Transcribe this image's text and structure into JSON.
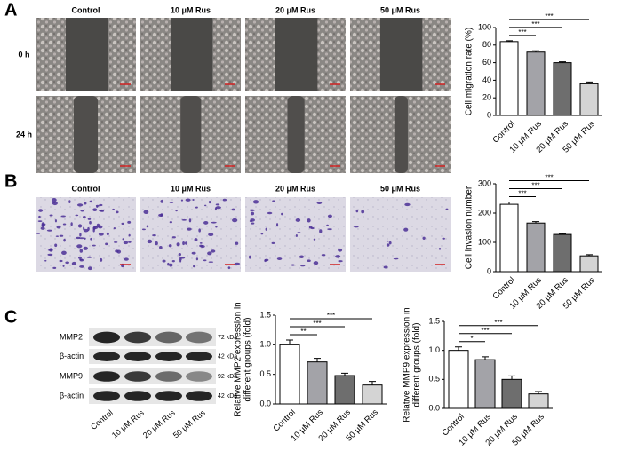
{
  "figure": {
    "A": {
      "label": "A",
      "columns": [
        "Control",
        "10 μM Rus",
        "20 μM Rus",
        "50 μM Rus"
      ],
      "rows": [
        "0 h",
        "24 h"
      ]
    },
    "B": {
      "label": "B",
      "columns": [
        "Control",
        "10 μM Rus",
        "20 μM Rus",
        "50 μM Rus"
      ]
    },
    "C": {
      "label": "C",
      "blots": [
        {
          "name": "MMP2",
          "size": "72 kDa"
        },
        {
          "name": "β-actin",
          "size": "42 kDa"
        },
        {
          "name": "MMP9",
          "size": "92 kDa"
        },
        {
          "name": "β-actin",
          "size": "42 kDa"
        }
      ],
      "columns": [
        "Control",
        "10 μM Rus",
        "20 μM Rus",
        "50 μM Rus"
      ]
    }
  },
  "chart_data": [
    {
      "type": "bar",
      "ylabel": [
        "Cell migration rate (%)"
      ],
      "categories": [
        "Control",
        "10 μM Rus",
        "20 μM Rus",
        "50 μM Rus"
      ],
      "values": [
        84,
        72,
        60,
        36
      ],
      "errors": [
        1,
        1.5,
        1,
        2
      ],
      "colors": [
        "#ffffff",
        "#a3a3a8",
        "#6e6e6e",
        "#d4d4d4"
      ],
      "ylim": [
        0,
        100
      ],
      "yticks": [
        0,
        20,
        40,
        60,
        80,
        100
      ],
      "annotations": [
        "***",
        "***",
        "***"
      ]
    },
    {
      "type": "bar",
      "ylabel": [
        "Cell invasion number"
      ],
      "categories": [
        "Control",
        "10 μM Rus",
        "20 μM Rus",
        "50 μM Rus"
      ],
      "values": [
        230,
        166,
        127,
        54
      ],
      "errors": [
        8,
        5,
        3,
        4
      ],
      "colors": [
        "#ffffff",
        "#a3a3a8",
        "#6e6e6e",
        "#d4d4d4"
      ],
      "ylim": [
        0,
        300
      ],
      "yticks": [
        0,
        100,
        200,
        300
      ],
      "annotations": [
        "***",
        "***",
        "***"
      ]
    },
    {
      "type": "bar",
      "ylabel": [
        "Relative MMP2 expression in",
        "different groups (fold)"
      ],
      "categories": [
        "Control",
        "10 μM Rus",
        "20 μM Rus",
        "50 μM Rus"
      ],
      "values": [
        1.0,
        0.71,
        0.48,
        0.32
      ],
      "errors": [
        0.08,
        0.06,
        0.04,
        0.06
      ],
      "colors": [
        "#ffffff",
        "#a3a3a8",
        "#6e6e6e",
        "#d4d4d4"
      ],
      "ylim": [
        0,
        1.5
      ],
      "yticks": [
        {
          "value": 0,
          "label": "0.0"
        },
        0.5,
        {
          "value": 1,
          "label": "1.0"
        },
        1.5
      ],
      "annotations": [
        "**",
        "***",
        "***"
      ]
    },
    {
      "type": "bar",
      "ylabel": [
        "Relative MMP9 expression in",
        "different groups (fold)"
      ],
      "categories": [
        "Control",
        "10 μM Rus",
        "20 μM Rus",
        "50 μM Rus"
      ],
      "values": [
        1.0,
        0.84,
        0.5,
        0.25
      ],
      "errors": [
        0.06,
        0.05,
        0.06,
        0.04
      ],
      "colors": [
        "#ffffff",
        "#a3a3a8",
        "#6e6e6e",
        "#d4d4d4"
      ],
      "ylim": [
        0,
        1.5
      ],
      "yticks": [
        {
          "value": 0,
          "label": "0.0"
        },
        0.5,
        {
          "value": 1,
          "label": "1.0"
        },
        1.5
      ],
      "annotations": [
        "*",
        "***",
        "***"
      ]
    }
  ]
}
